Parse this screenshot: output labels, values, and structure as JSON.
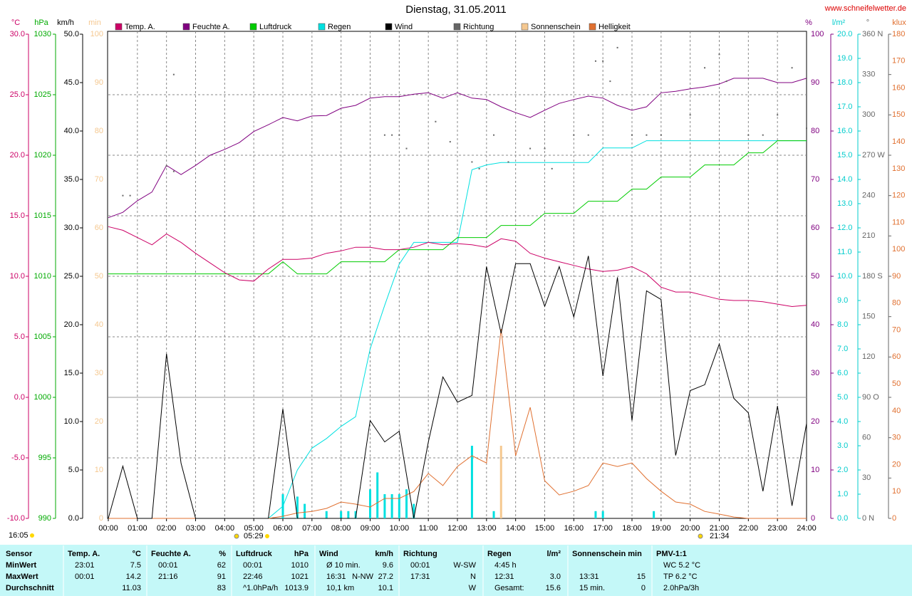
{
  "chart_data": {
    "type": "line",
    "title": "Dienstag, 31.05.2011",
    "source": "www.schneifelwetter.de",
    "annotations": {
      "updated": "16:05",
      "sunrise": "05:29",
      "sunset": "21:34"
    },
    "xlim": [
      0,
      24
    ],
    "xticks": [
      {
        "value": 0,
        "label": "00:00"
      },
      {
        "value": 1,
        "label": "01:00"
      },
      {
        "value": 2,
        "label": "02:00"
      },
      {
        "value": 3,
        "label": "03:00"
      },
      {
        "value": 4,
        "label": "04:00"
      },
      {
        "value": 5,
        "label": "05:00"
      },
      {
        "value": 6,
        "label": "06:00"
      },
      {
        "value": 7,
        "label": "07:00"
      },
      {
        "value": 8,
        "label": "08:00"
      },
      {
        "value": 9,
        "label": "09:00"
      },
      {
        "value": 10,
        "label": "10:00"
      },
      {
        "value": 11,
        "label": "11:00"
      },
      {
        "value": 12,
        "label": "12:00"
      },
      {
        "value": 13,
        "label": "13:00"
      },
      {
        "value": 14,
        "label": "14:00"
      },
      {
        "value": 15,
        "label": "15:00"
      },
      {
        "value": 16,
        "label": "16:00"
      },
      {
        "value": 17,
        "label": "17:00"
      },
      {
        "value": 18,
        "label": "18:00"
      },
      {
        "value": 19,
        "label": "19:00"
      },
      {
        "value": 20,
        "label": "20:00"
      },
      {
        "value": 21,
        "label": "21:00"
      },
      {
        "value": 22,
        "label": "22:00"
      },
      {
        "value": 23,
        "label": "23:00"
      },
      {
        "value": 24,
        "label": "24:00"
      }
    ],
    "x": [
      0,
      0.5,
      1,
      1.5,
      2,
      2.5,
      3,
      3.5,
      4,
      4.5,
      5,
      5.5,
      6,
      6.5,
      7,
      7.5,
      8,
      8.5,
      9,
      9.5,
      10,
      10.5,
      11,
      11.5,
      12,
      12.5,
      13,
      13.5,
      14,
      14.5,
      15,
      15.5,
      16,
      16.5,
      17,
      17.5,
      18,
      18.5,
      19,
      19.5,
      20,
      20.5,
      21,
      21.5,
      22,
      22.5,
      23,
      23.5,
      24
    ],
    "axes": [
      {
        "unit": "°C",
        "color": "#cc0066",
        "grid": true,
        "lim": [
          -10,
          30
        ],
        "ticks": [
          {
            "value": -10,
            "label": "-10.0"
          },
          {
            "value": -5,
            "label": "-5.0"
          },
          {
            "value": 0,
            "label": "0.0"
          },
          {
            "value": 5,
            "label": "5.0"
          },
          {
            "value": 10,
            "label": "10.0"
          },
          {
            "value": 15,
            "label": "15.0"
          },
          {
            "value": 20,
            "label": "20.0"
          },
          {
            "value": 25,
            "label": "25.0"
          },
          {
            "value": 30,
            "label": "30.0"
          }
        ]
      },
      {
        "unit": "hPa",
        "color": "#00aa00",
        "lim": [
          990,
          1030
        ],
        "ticks": [
          990,
          995,
          1000,
          1005,
          1010,
          1015,
          1020,
          1025,
          1030
        ]
      },
      {
        "unit": "km/h",
        "color": "#000000",
        "lim": [
          0,
          50
        ],
        "ticks": [
          {
            "value": 0,
            "label": "0.0"
          },
          {
            "value": 5,
            "label": "5.0"
          },
          {
            "value": 10,
            "label": "10.0"
          },
          {
            "value": 15,
            "label": "15.0"
          },
          {
            "value": 20,
            "label": "20.0"
          },
          {
            "value": 25,
            "label": "25.0"
          },
          {
            "value": 30,
            "label": "30.0"
          },
          {
            "value": 35,
            "label": "35.0"
          },
          {
            "value": 40,
            "label": "40.0"
          },
          {
            "value": 45,
            "label": "45.0"
          },
          {
            "value": 50,
            "label": "50.0"
          }
        ]
      },
      {
        "unit": "min",
        "color": "#f5c890",
        "lim": [
          0,
          100
        ],
        "ticks": [
          0,
          10,
          20,
          30,
          40,
          50,
          60,
          70,
          80,
          90,
          100
        ]
      },
      {
        "unit": "%",
        "color": "#800080",
        "lim": [
          0,
          100
        ],
        "ticks": [
          0,
          10,
          20,
          30,
          40,
          50,
          60,
          70,
          80,
          90,
          100
        ]
      },
      {
        "unit": "l/m²",
        "color": "#00cccc",
        "lim": [
          0,
          20
        ],
        "ticks": [
          {
            "value": 0,
            "label": "0.0"
          },
          {
            "value": 1,
            "label": "1.0"
          },
          {
            "value": 2,
            "label": "2.0"
          },
          {
            "value": 3,
            "label": "3.0"
          },
          {
            "value": 4,
            "label": "4.0"
          },
          {
            "value": 5,
            "label": "5.0"
          },
          {
            "value": 6,
            "label": "6.0"
          },
          {
            "value": 7,
            "label": "7.0"
          },
          {
            "value": 8,
            "label": "8.0"
          },
          {
            "value": 9,
            "label": "9.0"
          },
          {
            "value": 10,
            "label": "10.0"
          },
          {
            "value": 11,
            "label": "11.0"
          },
          {
            "value": 12,
            "label": "12.0"
          },
          {
            "value": 13,
            "label": "13.0"
          },
          {
            "value": 14,
            "label": "14.0"
          },
          {
            "value": 15,
            "label": "15.0"
          },
          {
            "value": 16,
            "label": "16.0"
          },
          {
            "value": 17,
            "label": "17.0"
          },
          {
            "value": 18,
            "label": "18.0"
          },
          {
            "value": 19,
            "label": "19.0"
          },
          {
            "value": 20,
            "label": "20.0"
          }
        ]
      },
      {
        "unit": "°",
        "color": "#666666",
        "lim": [
          0,
          360
        ],
        "ticks": [
          {
            "value": 0,
            "label": "0 N"
          },
          30,
          60,
          {
            "value": 90,
            "label": "90 O"
          },
          120,
          150,
          {
            "value": 180,
            "label": "180 S"
          },
          210,
          240,
          {
            "value": 270,
            "label": "270 W"
          },
          300,
          330,
          {
            "value": 360,
            "label": "360 N"
          }
        ]
      },
      {
        "unit": "klux",
        "color": "#e07030",
        "lim": [
          0,
          180
        ],
        "ticks": [
          0,
          10,
          20,
          30,
          40,
          50,
          60,
          70,
          80,
          90,
          100,
          110,
          120,
          130,
          140,
          150,
          160,
          170,
          180
        ]
      }
    ],
    "series": [
      {
        "name": "Temp. A.",
        "color": "#cc0066",
        "axis": "°C",
        "values": [
          14.1,
          13.8,
          13.2,
          12.6,
          13.5,
          12.8,
          11.9,
          11.1,
          10.3,
          9.7,
          9.6,
          10.6,
          11.4,
          11.4,
          11.5,
          11.9,
          12.1,
          12.4,
          12.4,
          12.2,
          12.2,
          12.4,
          12.8,
          12.6,
          12.7,
          12.6,
          12.4,
          13.1,
          12.9,
          11.9,
          11.5,
          11.2,
          10.9,
          10.6,
          10.4,
          10.5,
          10.8,
          10.2,
          9.1,
          8.7,
          8.7,
          8.4,
          8.1,
          8.0,
          8.0,
          7.9,
          7.7,
          7.5,
          7.6
        ]
      },
      {
        "name": "Feuchte A.",
        "color": "#800080",
        "axis": "%",
        "values": [
          62.1,
          63.2,
          65.6,
          67.4,
          72.9,
          71.0,
          72.9,
          75.0,
          76.2,
          77.6,
          79.9,
          81.3,
          82.8,
          82.1,
          83.1,
          83.2,
          84.7,
          85.3,
          86.8,
          87.1,
          87.1,
          87.6,
          87.9,
          86.8,
          87.9,
          86.8,
          86.5,
          85.0,
          83.8,
          82.8,
          84.3,
          85.7,
          86.5,
          87.2,
          86.8,
          85.3,
          84.3,
          85.0,
          87.9,
          88.2,
          88.7,
          89.1,
          89.7,
          90.9,
          90.9,
          90.9,
          90.0,
          90.0,
          90.9
        ]
      },
      {
        "name": "Luftdruck",
        "color": "#00cc00",
        "axis": "hPa",
        "values": [
          1010.2,
          1010.2,
          1010.2,
          1010.2,
          1010.2,
          1010.2,
          1010.2,
          1010.2,
          1010.2,
          1010.2,
          1010.2,
          1010.2,
          1011.2,
          1010.2,
          1010.2,
          1010.2,
          1011.2,
          1011.2,
          1011.2,
          1011.2,
          1012.2,
          1012.2,
          1012.2,
          1012.2,
          1013.2,
          1013.2,
          1013.2,
          1014.2,
          1014.2,
          1014.2,
          1015.2,
          1015.2,
          1015.2,
          1016.2,
          1016.2,
          1016.2,
          1017.2,
          1017.2,
          1018.2,
          1018.2,
          1018.2,
          1019.2,
          1019.2,
          1019.2,
          1020.2,
          1020.2,
          1021.2,
          1021.2,
          1021.2
        ]
      },
      {
        "name": "Regen",
        "color": "#00e0e0",
        "axis": "l/m²",
        "values": [
          0,
          0,
          0,
          0,
          0,
          0,
          0,
          0,
          0,
          0,
          0,
          0,
          0.5,
          2,
          2.9,
          3.3,
          3.8,
          4.2,
          7,
          8.8,
          10.5,
          11.4,
          11.4,
          11.4,
          11.4,
          14.4,
          14.6,
          14.7,
          14.7,
          14.7,
          14.7,
          14.7,
          14.7,
          14.7,
          15.3,
          15.3,
          15.3,
          15.6,
          15.6,
          15.6,
          15.6,
          15.6,
          15.6,
          15.6,
          15.6,
          15.6,
          15.6,
          15.6,
          15.6
        ],
        "bars": {
          "x": [
            6,
            6.5,
            6.75,
            7.5,
            8,
            8.25,
            8.5,
            9,
            9.25,
            9.5,
            9.75,
            10,
            10.25,
            10.5,
            12.5,
            13.25,
            16.75,
            17,
            18.75
          ],
          "values": [
            1.0,
            0.9,
            0.6,
            0.3,
            0.3,
            0.3,
            0.3,
            1.2,
            1.9,
            1.0,
            1.0,
            1.0,
            1.2,
            0.6,
            3.0,
            0.3,
            0.3,
            0.3,
            0.3
          ]
        }
      },
      {
        "name": "Wind",
        "color": "#000000",
        "axis": "km/h",
        "values": [
          0,
          5.4,
          0,
          0,
          17.0,
          5.7,
          0,
          0,
          0,
          0,
          0,
          0,
          11.3,
          0,
          0,
          0,
          0,
          0,
          10.1,
          7.9,
          9.0,
          0,
          7.9,
          14.6,
          12.0,
          12.7,
          26.0,
          19.1,
          26.3,
          26.3,
          21.9,
          26.0,
          20.8,
          27.1,
          14.7,
          24.9,
          10.1,
          23.5,
          22.6,
          6.5,
          13.2,
          13.8,
          18.0,
          12.4,
          10.9,
          2.8,
          11.6,
          1.3,
          9.8
        ]
      },
      {
        "name": "Richtung",
        "color": "#666666",
        "axis": "°",
        "type": "scatter",
        "x": [
          0.5,
          0.75,
          2.0,
          2.25,
          2.25,
          9.5,
          9.75,
          10.0,
          10.25,
          11.25,
          11.75,
          12.5,
          12.75,
          13.25,
          13.75,
          14.5,
          15.0,
          15.25,
          16.0,
          16.5,
          16.75,
          17.0,
          17.25,
          17.5,
          18.0,
          18.5,
          19.0,
          20.0,
          20.5,
          21.0,
          21.25,
          22.0,
          22.5,
          23.0,
          23.5,
          24.0
        ],
        "values": [
          240,
          240,
          262,
          330,
          258,
          285,
          285,
          285,
          275,
          295,
          280,
          265,
          260,
          285,
          265,
          275,
          275,
          260,
          285,
          285,
          340,
          340,
          325,
          350,
          285,
          285,
          285,
          300,
          335,
          345,
          325,
          285,
          285,
          300,
          335,
          290
        ]
      },
      {
        "name": "Sonnenschein",
        "color": "#f5c890",
        "axis": "min",
        "type": "bar",
        "x": [
          13.5
        ],
        "values": [
          15
        ]
      },
      {
        "name": "Helligkeit",
        "color": "#e07030",
        "axis": "klux",
        "values": [
          0,
          0,
          0,
          0,
          0,
          0,
          0,
          0,
          0,
          0,
          0,
          0,
          0.8,
          2,
          2.6,
          3.7,
          6.1,
          5.3,
          4.2,
          7.4,
          7.4,
          10,
          16.7,
          12.2,
          19.3,
          23.3,
          20.6,
          70.4,
          23.3,
          41.3,
          14.0,
          8.7,
          10.1,
          12.2,
          20.6,
          19.3,
          20.6,
          14.8,
          10.1,
          6.1,
          5.3,
          2.6,
          1.6,
          0.5,
          0,
          0,
          0,
          0,
          0
        ]
      }
    ]
  },
  "table": {
    "columns": [
      {
        "title": "Sensor"
      },
      {
        "title": "Temp. A.",
        "unit": "°C"
      },
      {
        "title": "Feuchte A.",
        "unit": "%"
      },
      {
        "title": "Luftdruck",
        "unit": "hPa"
      },
      {
        "title": "Wind",
        "unit": "km/h"
      },
      {
        "title": "Richtung"
      },
      {
        "title": "Regen",
        "unit": "l/m²"
      },
      {
        "title": "Sonnenschein min"
      },
      {
        "title": "PMV-1:1"
      }
    ],
    "rows": [
      {
        "label": "MinWert",
        "cells": [
          {
            "left": "23:01",
            "right": "7.5"
          },
          {
            "left": "00:01",
            "right": "62"
          },
          {
            "left": "00:01",
            "right": "1010"
          },
          {
            "left": "Ø 10 min.",
            "right": "9.6"
          },
          {
            "left": "00:01",
            "right": "W-SW"
          },
          {
            "left": "4:45 h"
          },
          {},
          {
            "left": "WC 5.2 °C"
          }
        ]
      },
      {
        "label": "MaxWert",
        "cells": [
          {
            "left": "00:01",
            "right": "14.2"
          },
          {
            "left": "21:16",
            "right": "91"
          },
          {
            "left": "22:46",
            "right": "1021"
          },
          {
            "left": "16:31",
            "mid": "N-NW",
            "right": "27.2"
          },
          {
            "left": "17:31",
            "right": "N"
          },
          {
            "left": "12:31",
            "right": "3.0"
          },
          {
            "left": "13:31",
            "right": "15"
          },
          {
            "left": "TP 6.2 °C"
          }
        ]
      },
      {
        "label": "Durchschnitt",
        "cells": [
          {
            "right": "11.03"
          },
          {
            "right": "83"
          },
          {
            "left": "^1.0hPa/h",
            "right": "1013.9"
          },
          {
            "left": "10,1 km",
            "right": "10.1"
          },
          {
            "right": "W"
          },
          {
            "left": "Gesamt:",
            "right": "15.6"
          },
          {
            "left": "15 min.",
            "right": "0"
          },
          {
            "left": "2.0hPa/3h"
          }
        ]
      }
    ]
  }
}
